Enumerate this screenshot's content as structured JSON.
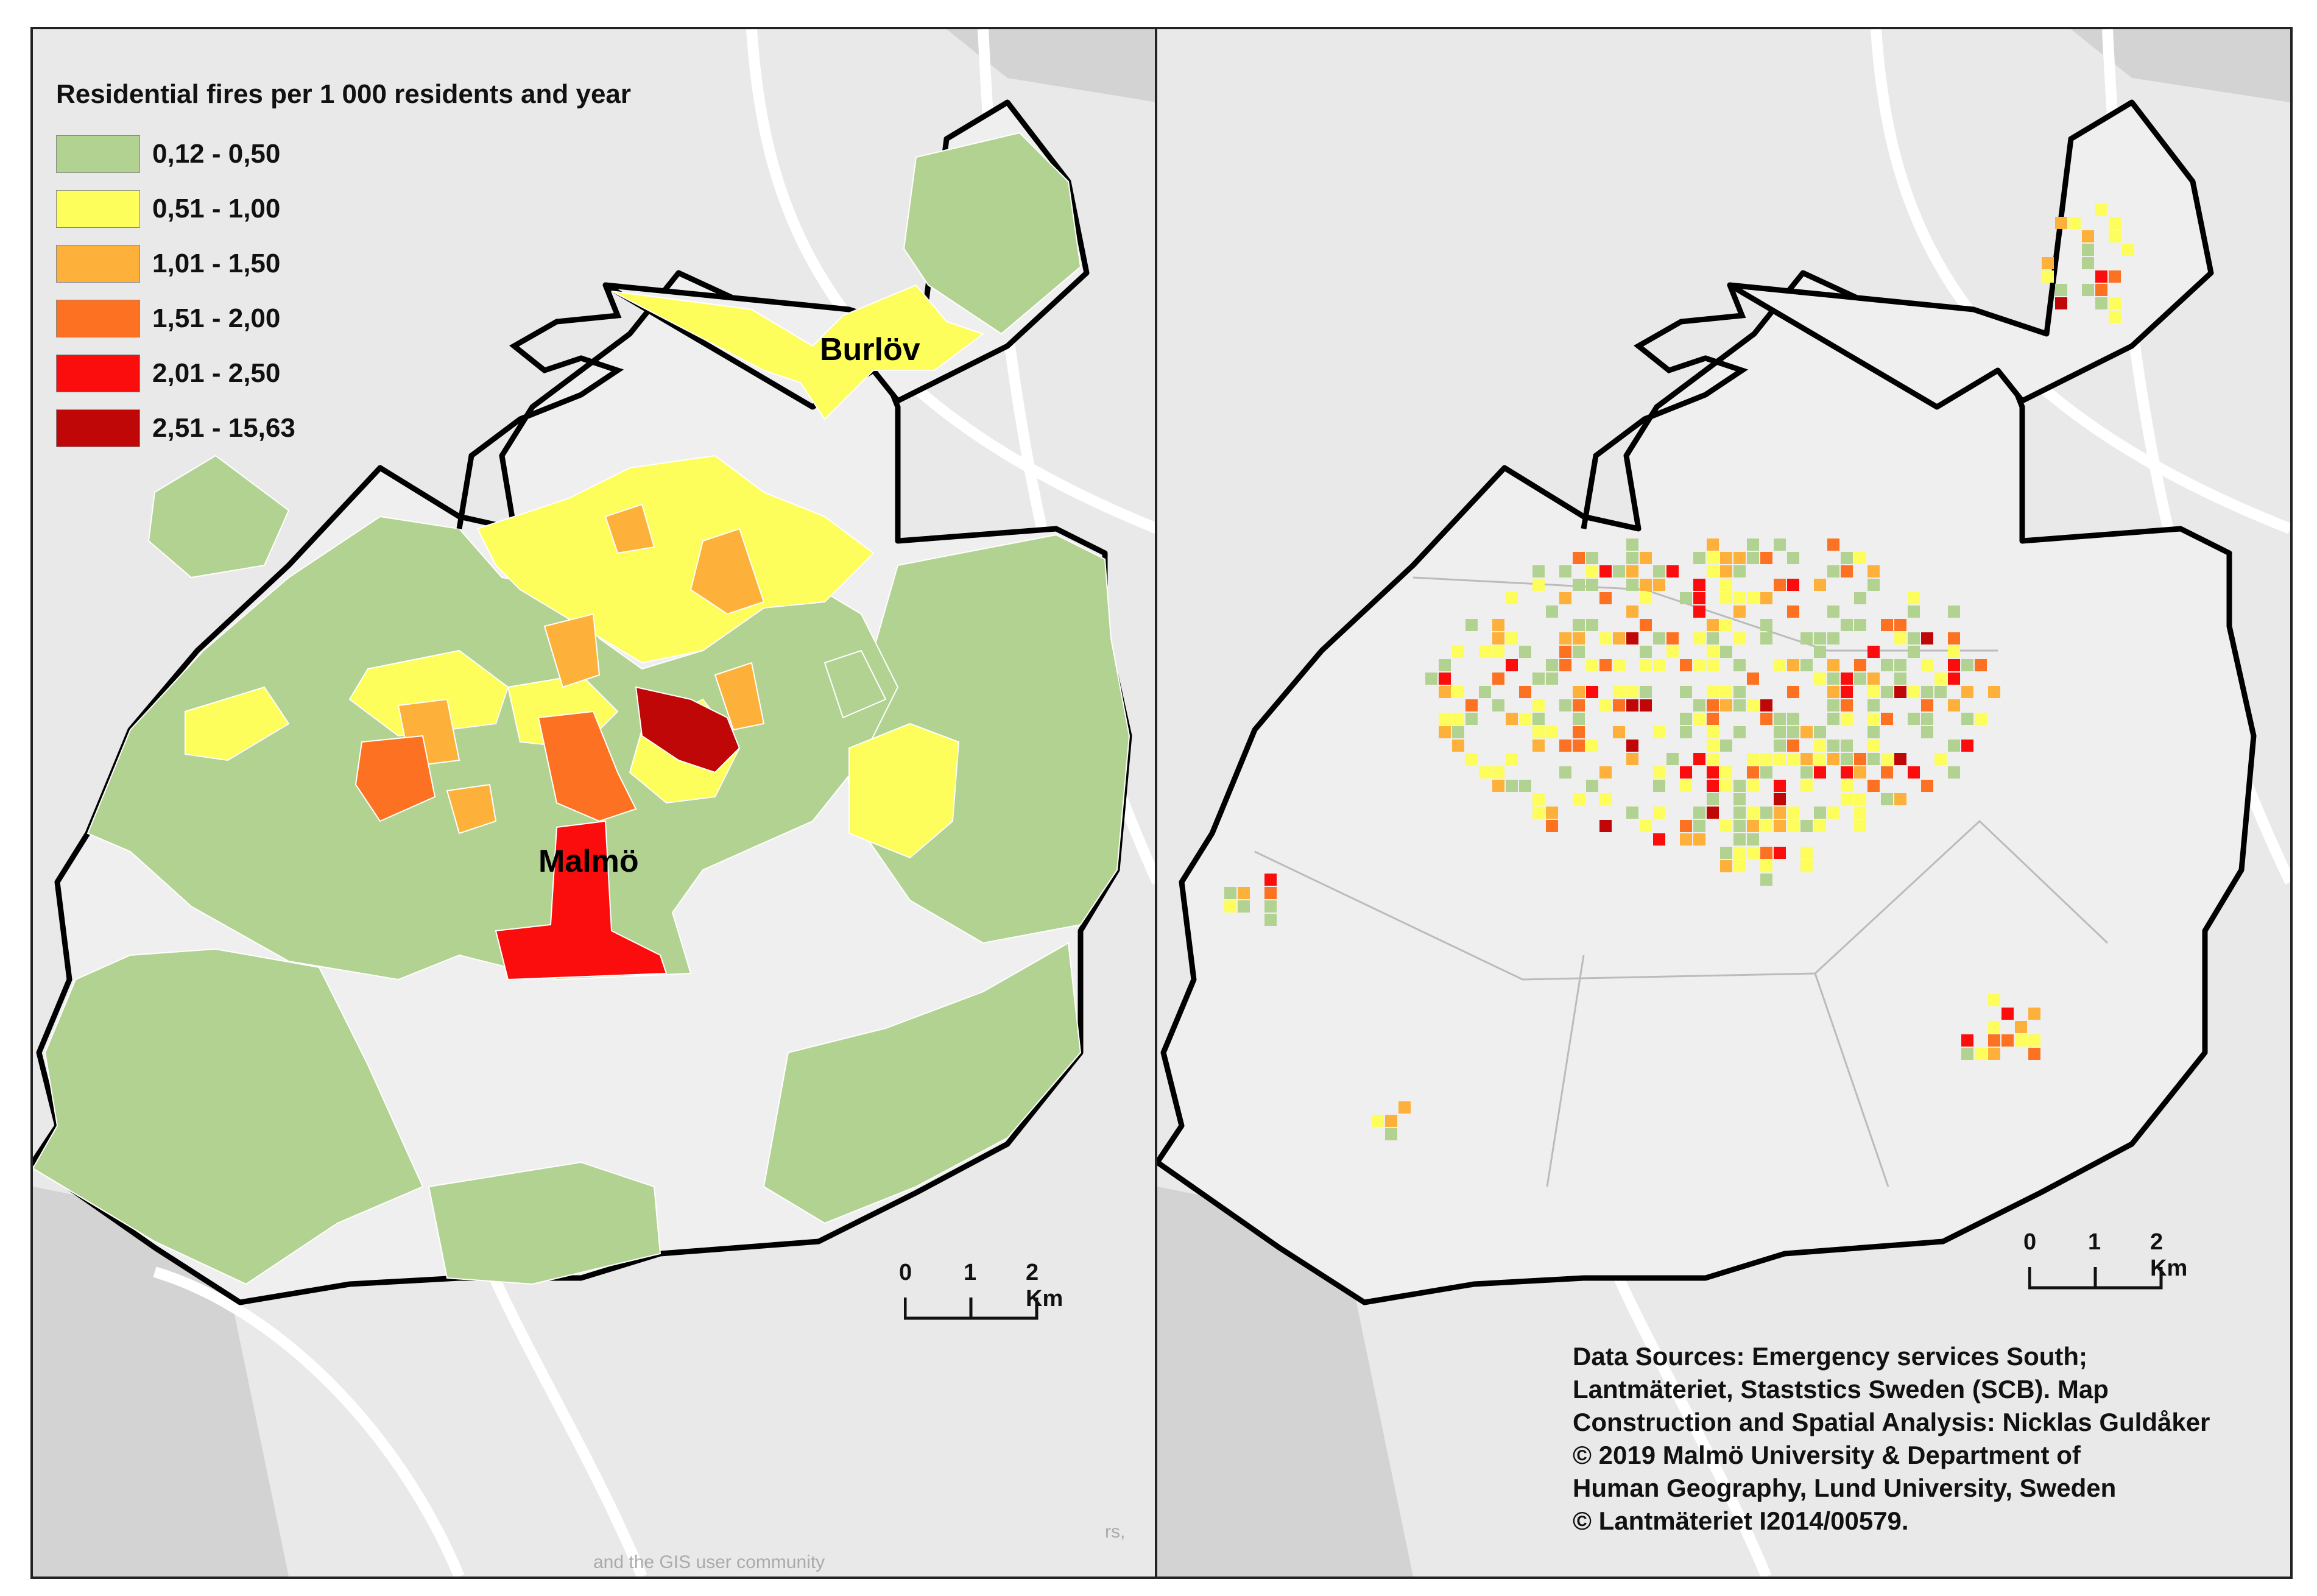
{
  "legend": {
    "title": "Residential fires  per 1 000 residents and year",
    "classes": [
      {
        "label": "0,12 - 0,50",
        "color": "#b2d292"
      },
      {
        "label": "0,51 - 1,00",
        "color": "#fdfd5b"
      },
      {
        "label": "1,01 - 1,50",
        "color": "#fdb13a"
      },
      {
        "label": "1,51 - 2,00",
        "color": "#fc7122"
      },
      {
        "label": "2,01 - 2,50",
        "color": "#fc0d0d"
      },
      {
        "label": "2,51 - 15,63",
        "color": "#bf0707"
      }
    ]
  },
  "places": {
    "burlov": "Burlöv",
    "malmo": "Malmö"
  },
  "scalebar": {
    "labels": [
      "0",
      "1",
      "2 Km"
    ]
  },
  "attribution": {
    "lines": [
      "Data Sources:  Emergency services South;",
      "Lantmäteriet, Staststics Sweden (SCB). Map",
      "Construction and Spatial Analysis: Nicklas Guldåker",
      "© 2019 Malmö University & Department of",
      "Human Geography, Lund University, Sweden",
      "© Lantmäteriet I2014/00579."
    ],
    "basemap_fragment": "rs,",
    "basemap_fragment_2": "and the GIS user community"
  },
  "colors": {
    "background": "#e9e9e9",
    "land": "#efefef",
    "water": "#d3d3d3",
    "road": "#ffffff",
    "boundary": "#000000",
    "district_line": "#aaaaaa"
  }
}
